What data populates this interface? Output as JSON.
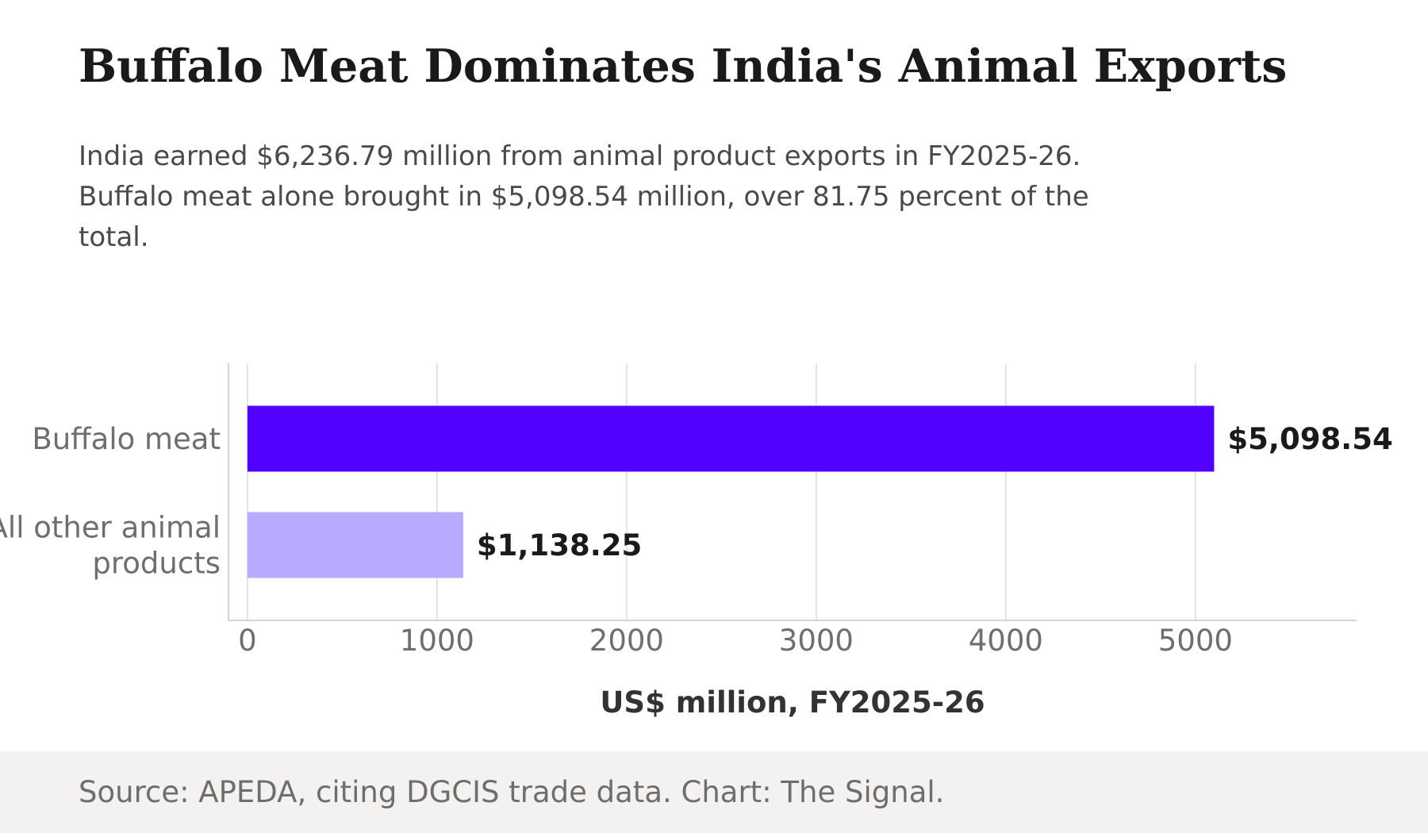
{
  "header": {
    "title": "Buffalo Meat Dominates India's Animal Exports",
    "subtitle": "India earned $6,236.79 million from animal product exports in FY2025-26. Buffalo meat alone brought in $5,098.54 million, over 81.75 percent of the total."
  },
  "footer": {
    "source": "Source: APEDA, citing DGCIS trade data. Chart: The Signal."
  },
  "chart_data": {
    "type": "bar",
    "orientation": "horizontal",
    "categories": [
      [
        "Buffalo meat"
      ],
      [
        "All other animal",
        "products"
      ]
    ],
    "values": [
      5098.54,
      1138.25
    ],
    "value_labels": [
      "$5,098.54",
      "$1,138.25"
    ],
    "colors": [
      "#5200ff",
      "#b8aaff"
    ],
    "xlabel": "US$ million, FY2025-26",
    "xticks": [
      0,
      1000,
      2000,
      3000,
      4000,
      5000
    ],
    "xlim": [
      -100,
      5850
    ],
    "grid": true
  }
}
